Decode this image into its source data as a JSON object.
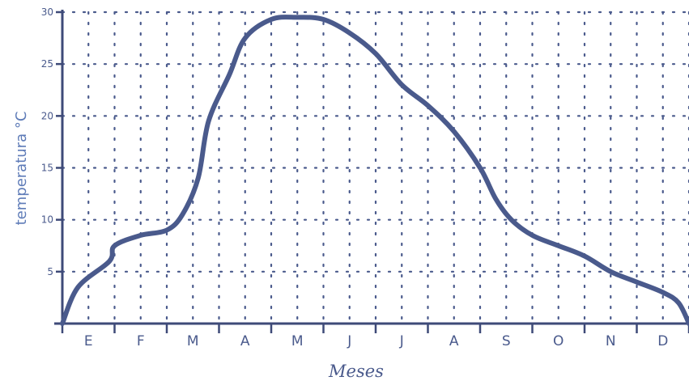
{
  "chart_data": {
    "type": "line",
    "xlabel": "Meses",
    "ylabel": "temperatura °C",
    "categories": [
      "E",
      "F",
      "M",
      "A",
      "M",
      "J",
      "J",
      "A",
      "S",
      "O",
      "N",
      "D"
    ],
    "yticks": [
      "5",
      "10",
      "15",
      "20",
      "25",
      "30"
    ],
    "ylim": [
      0,
      30
    ],
    "xlim": [
      0,
      12
    ],
    "grid": true,
    "series": [
      {
        "color": "#4a5a8c",
        "points": [
          [
            0.0,
            0.0
          ],
          [
            0.3,
            3.5
          ],
          [
            0.9,
            6.0
          ],
          [
            1.0,
            7.5
          ],
          [
            1.5,
            8.5
          ],
          [
            2.0,
            9.0
          ],
          [
            2.3,
            10.5
          ],
          [
            2.6,
            14.0
          ],
          [
            2.8,
            19.5
          ],
          [
            3.2,
            24.0
          ],
          [
            3.5,
            27.5
          ],
          [
            4.0,
            29.3
          ],
          [
            4.5,
            29.5
          ],
          [
            5.0,
            29.3
          ],
          [
            5.5,
            28.0
          ],
          [
            6.0,
            26.0
          ],
          [
            6.5,
            23.0
          ],
          [
            7.0,
            21.0
          ],
          [
            7.5,
            18.5
          ],
          [
            8.0,
            15.0
          ],
          [
            8.3,
            12.0
          ],
          [
            8.6,
            10.0
          ],
          [
            9.0,
            8.5
          ],
          [
            9.5,
            7.5
          ],
          [
            10.0,
            6.5
          ],
          [
            10.5,
            5.0
          ],
          [
            11.0,
            4.0
          ],
          [
            11.5,
            3.0
          ],
          [
            11.8,
            2.0
          ],
          [
            12.0,
            0.0
          ]
        ]
      }
    ]
  }
}
